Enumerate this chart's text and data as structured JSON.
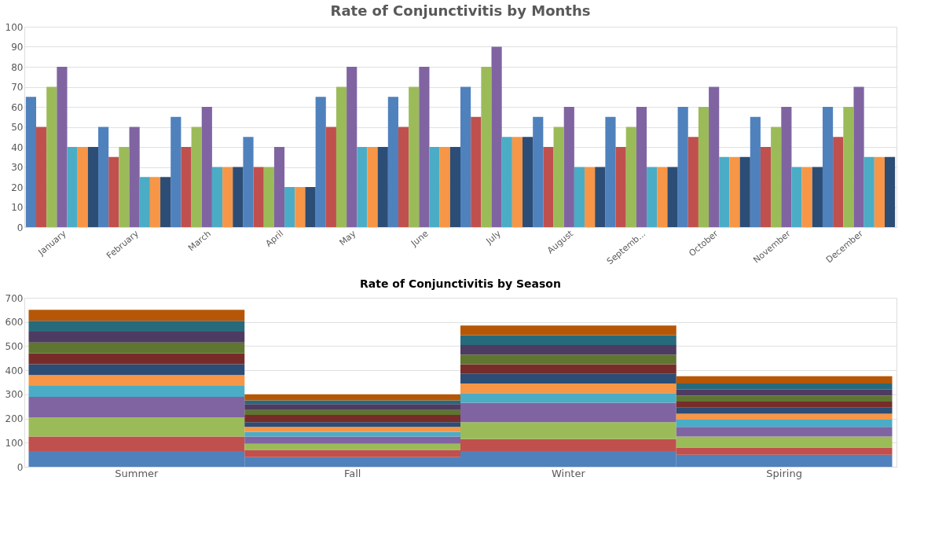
{
  "chart_data": [
    {
      "type": "bar",
      "title": "Rate of Conjunctivitis by Months",
      "categories": [
        "January",
        "February",
        "March",
        "April",
        "May",
        "June",
        "July",
        "August",
        "Septemb...",
        "October",
        "November",
        "December"
      ],
      "ylim": [
        0,
        100
      ],
      "yticks": [
        0,
        10,
        20,
        30,
        40,
        50,
        60,
        70,
        80,
        90,
        100
      ],
      "grid": "y",
      "legend": false,
      "series": [
        {
          "color": "#4f81bd",
          "values": [
            65,
            50,
            55,
            45,
            65,
            65,
            70,
            55,
            55,
            60,
            55,
            60
          ]
        },
        {
          "color": "#c0504d",
          "values": [
            50,
            35,
            40,
            30,
            50,
            50,
            55,
            40,
            40,
            45,
            40,
            45
          ]
        },
        {
          "color": "#9bbb59",
          "values": [
            70,
            40,
            50,
            30,
            70,
            70,
            80,
            50,
            50,
            60,
            50,
            60
          ]
        },
        {
          "color": "#8064a2",
          "values": [
            80,
            50,
            60,
            40,
            80,
            80,
            90,
            60,
            60,
            70,
            60,
            70
          ]
        },
        {
          "color": "#4bacc6",
          "values": [
            40,
            25,
            30,
            20,
            40,
            40,
            45,
            30,
            30,
            35,
            30,
            35
          ]
        },
        {
          "color": "#f79646",
          "values": [
            40,
            25,
            30,
            20,
            40,
            40,
            45,
            30,
            30,
            35,
            30,
            35
          ]
        },
        {
          "color": "#2c4d75",
          "values": [
            40,
            25,
            30,
            20,
            40,
            40,
            45,
            30,
            30,
            35,
            30,
            35
          ]
        }
      ]
    },
    {
      "type": "bar",
      "stacked": true,
      "title": "Rate of Conjunctivitis by  Season",
      "categories": [
        "Summer",
        "Fall",
        "Winter",
        "Spiring"
      ],
      "ylim": [
        0,
        700
      ],
      "yticks": [
        0,
        100,
        200,
        300,
        400,
        500,
        600,
        700
      ],
      "grid": "y",
      "legend": false,
      "series": [
        {
          "color": "#4f81bd",
          "values": [
            65,
            40,
            65,
            50
          ]
        },
        {
          "color": "#c0504d",
          "values": [
            60,
            30,
            50,
            30
          ]
        },
        {
          "color": "#9bbb59",
          "values": [
            80,
            25,
            70,
            45
          ]
        },
        {
          "color": "#8064a2",
          "values": [
            85,
            30,
            80,
            40
          ]
        },
        {
          "color": "#4bacc6",
          "values": [
            45,
            20,
            40,
            30
          ]
        },
        {
          "color": "#f79646",
          "values": [
            45,
            20,
            40,
            25
          ]
        },
        {
          "color": "#2c4d75",
          "values": [
            45,
            20,
            40,
            25
          ]
        },
        {
          "color": "#772c2a",
          "values": [
            45,
            30,
            40,
            25
          ]
        },
        {
          "color": "#5f7530",
          "values": [
            45,
            20,
            40,
            25
          ]
        },
        {
          "color": "#4d3b62",
          "values": [
            45,
            25,
            40,
            25
          ]
        },
        {
          "color": "#276a7c",
          "values": [
            45,
            15,
            40,
            25
          ]
        },
        {
          "color": "#b65708",
          "values": [
            45,
            25,
            40,
            30
          ]
        }
      ]
    }
  ]
}
